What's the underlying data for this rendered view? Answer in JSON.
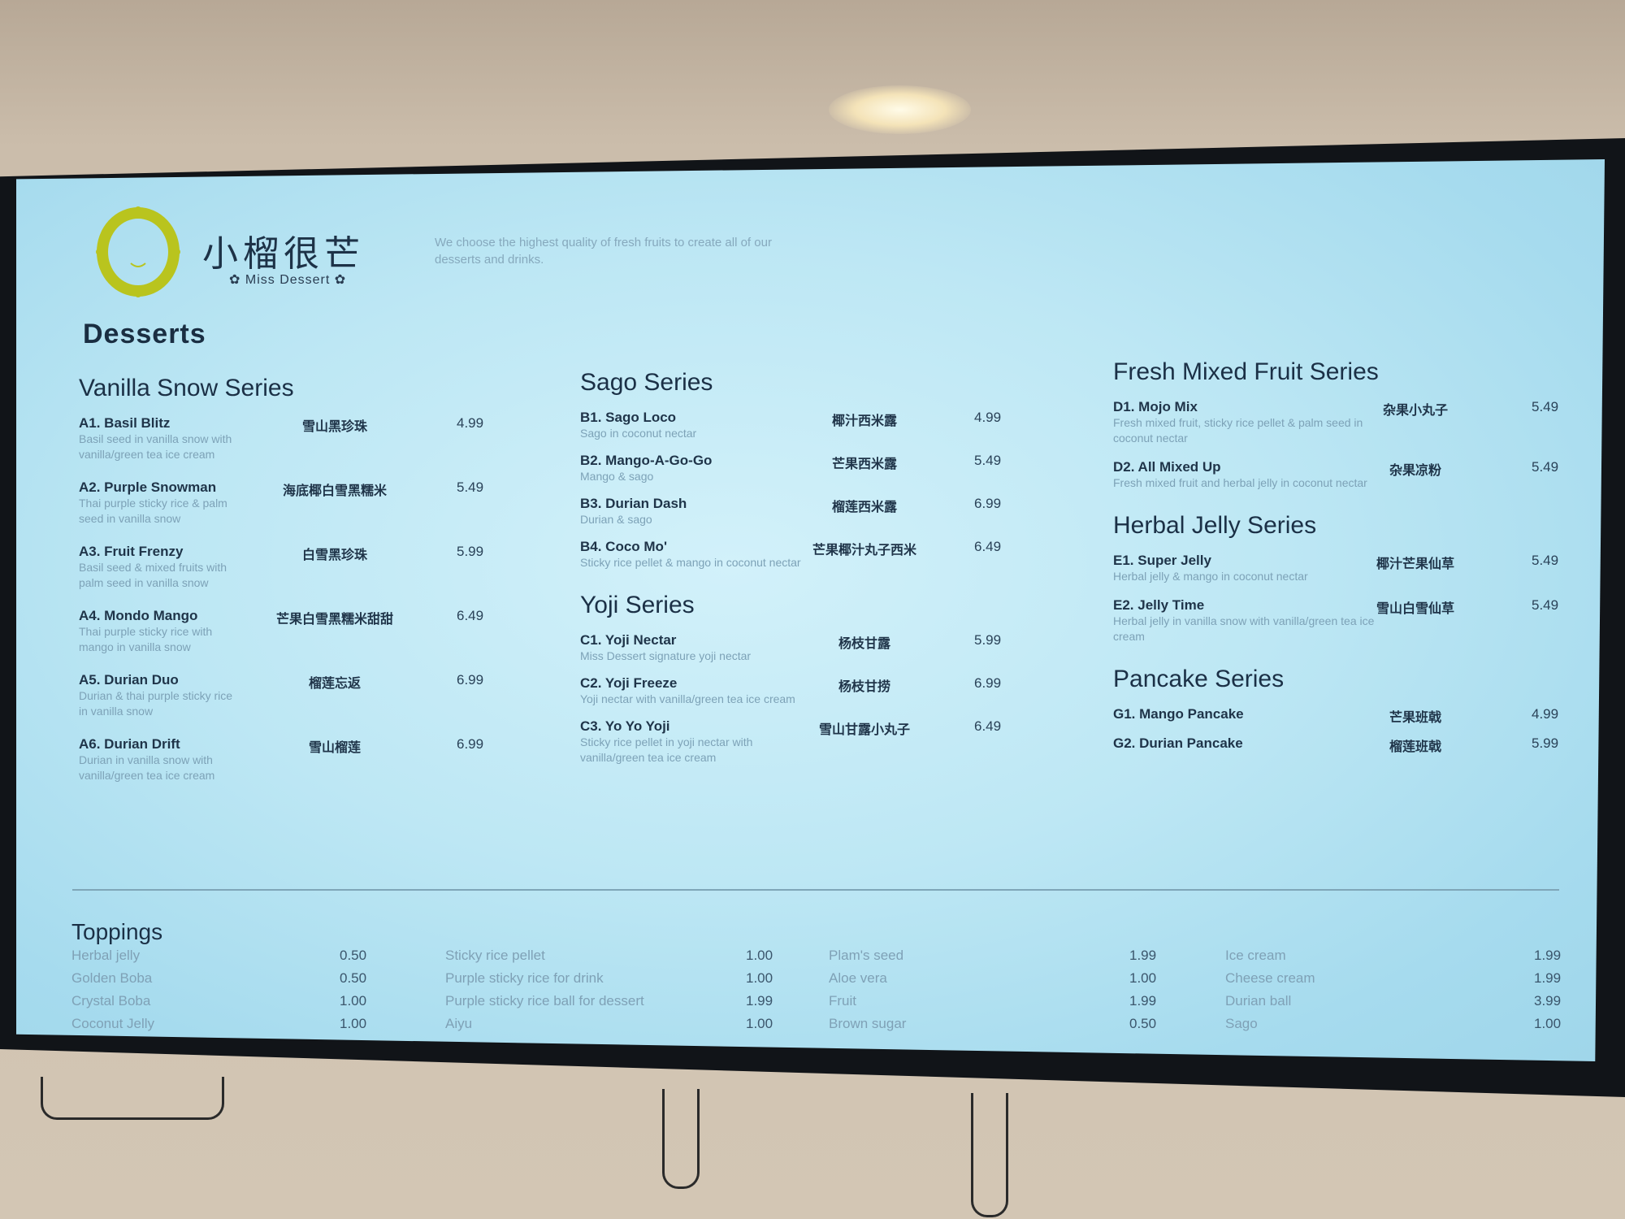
{
  "brand": {
    "name_cn": "小榴很芒",
    "name_en": "Miss Dessert",
    "tagline": "We choose the highest quality of fresh fruits to create all of our desserts and drinks.",
    "logo_color": "#b9c41e"
  },
  "page_title": "Desserts",
  "columns": [
    {
      "sections": [
        {
          "title": "Vanilla Snow Series",
          "items": [
            {
              "name": "A1. Basil Blitz",
              "desc": "Basil seed in vanilla snow with vanilla/green tea ice cream",
              "cn": "雪山黑珍珠",
              "price": "4.99"
            },
            {
              "name": "A2. Purple Snowman",
              "desc": "Thai purple sticky rice & palm seed in vanilla snow",
              "cn": "海底椰白雪黑糯米",
              "price": "5.49"
            },
            {
              "name": "A3. Fruit Frenzy",
              "desc": "Basil seed & mixed fruits with palm seed in vanilla snow",
              "cn": "白雪黑珍珠",
              "price": "5.99"
            },
            {
              "name": "A4. Mondo Mango",
              "desc": "Thai purple sticky rice with mango in vanilla snow",
              "cn": "芒果白雪黑糯米甜甜",
              "price": "6.49"
            },
            {
              "name": "A5. Durian Duo",
              "desc": "Durian & thai purple sticky rice in vanilla snow",
              "cn": "榴莲忘返",
              "price": "6.99"
            },
            {
              "name": "A6. Durian Drift",
              "desc": "Durian in vanilla snow with vanilla/green tea ice cream",
              "cn": "雪山榴莲",
              "price": "6.99"
            }
          ]
        }
      ]
    },
    {
      "sections": [
        {
          "title": "Sago Series",
          "items": [
            {
              "name": "B1. Sago Loco",
              "desc": "Sago in coconut nectar",
              "cn": "椰汁西米露",
              "price": "4.99"
            },
            {
              "name": "B2. Mango-A-Go-Go",
              "desc": "Mango & sago",
              "cn": "芒果西米露",
              "price": "5.49"
            },
            {
              "name": "B3. Durian Dash",
              "desc": "Durian & sago",
              "cn": "榴莲西米露",
              "price": "6.99"
            },
            {
              "name": "B4. Coco Mo'",
              "desc": "Sticky rice pellet & mango in coconut nectar",
              "cn": "芒果椰汁丸子西米",
              "price": "6.49"
            }
          ]
        },
        {
          "title": "Yoji Series",
          "items": [
            {
              "name": "C1. Yoji Nectar",
              "desc": "Miss Dessert signature yoji nectar",
              "cn": "杨枝甘露",
              "price": "5.99"
            },
            {
              "name": "C2. Yoji Freeze",
              "desc": "Yoji nectar with vanilla/green tea ice cream",
              "cn": "杨枝甘捞",
              "price": "6.99"
            },
            {
              "name": "C3. Yo Yo Yoji",
              "desc": "Sticky rice pellet in yoji nectar with vanilla/green tea ice cream",
              "cn": "雪山甘露小丸子",
              "price": "6.49"
            }
          ]
        }
      ]
    },
    {
      "sections": [
        {
          "title": "Fresh Mixed Fruit Series",
          "items": [
            {
              "name": "D1. Mojo Mix",
              "desc": "Fresh mixed fruit, sticky rice pellet & palm seed in coconut nectar",
              "cn": "杂果小丸子",
              "price": "5.49"
            },
            {
              "name": "D2. All Mixed Up",
              "desc": "Fresh mixed fruit and herbal jelly in coconut nectar",
              "cn": "杂果凉粉",
              "price": "5.49"
            }
          ]
        },
        {
          "title": "Herbal Jelly Series",
          "items": [
            {
              "name": "E1. Super Jelly",
              "desc": "Herbal jelly & mango in coconut nectar",
              "cn": "椰汁芒果仙草",
              "price": "5.49"
            },
            {
              "name": "E2. Jelly Time",
              "desc": "Herbal jelly in vanilla snow with vanilla/green tea ice cream",
              "cn": "雪山白雪仙草",
              "price": "5.49"
            }
          ]
        },
        {
          "title": "Pancake Series",
          "items": [
            {
              "name": "G1. Mango Pancake",
              "desc": "",
              "cn": "芒果班戟",
              "price": "4.99"
            },
            {
              "name": "G2. Durian Pancake",
              "desc": "",
              "cn": "榴莲班戟",
              "price": "5.99"
            }
          ]
        }
      ]
    }
  ],
  "toppings": {
    "title": "Toppings",
    "columns": [
      [
        {
          "name": "Herbal jelly",
          "price": "0.50"
        },
        {
          "name": "Golden Boba",
          "price": "0.50"
        },
        {
          "name": "Crystal Boba",
          "price": "1.00"
        },
        {
          "name": "Coconut Jelly",
          "price": "1.00"
        }
      ],
      [
        {
          "name": "Sticky rice pellet",
          "price": "1.00"
        },
        {
          "name": "Purple sticky rice for drink",
          "price": "1.00"
        },
        {
          "name": "Purple sticky rice ball for dessert",
          "price": "1.99"
        },
        {
          "name": "Aiyu",
          "price": "1.00"
        }
      ],
      [
        {
          "name": "Plam's seed",
          "price": "1.99"
        },
        {
          "name": "Aloe vera",
          "price": "1.00"
        },
        {
          "name": "Fruit",
          "price": "1.99"
        },
        {
          "name": "Brown sugar",
          "price": "0.50"
        }
      ],
      [
        {
          "name": "Ice cream",
          "price": "1.99"
        },
        {
          "name": "Cheese cream",
          "price": "1.99"
        },
        {
          "name": "Durian ball",
          "price": "3.99"
        },
        {
          "name": "Sago",
          "price": "1.00"
        }
      ]
    ]
  }
}
